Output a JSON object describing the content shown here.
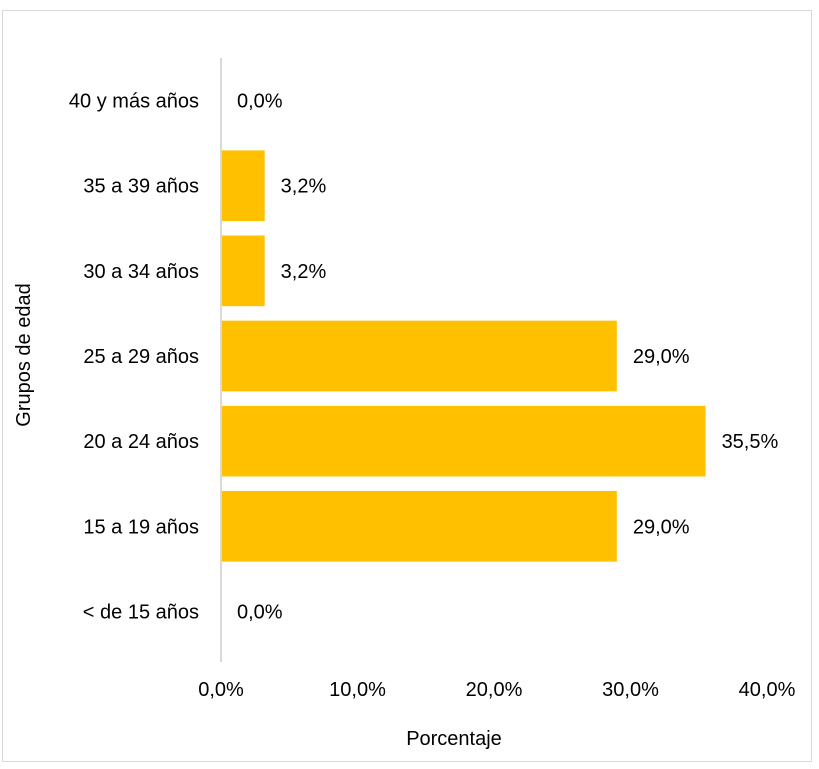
{
  "chart_data": {
    "type": "bar",
    "orientation": "horizontal",
    "categories": [
      "40 y más años",
      "35 a 39 años",
      "30 a 34 años",
      "25 a 29 años",
      "20 a 24 años",
      "15 a 19 años",
      "< de 15 años"
    ],
    "values": [
      0.0,
      3.2,
      3.2,
      29.0,
      35.5,
      29.0,
      0.0
    ],
    "data_labels": [
      "0,0%",
      "3,2%",
      "3,2%",
      "29,0%",
      "35,5%",
      "29,0%",
      "0,0%"
    ],
    "xlabel": "Porcentaje",
    "ylabel": "Grupos de edad",
    "xlim": [
      0,
      40
    ],
    "x_ticks": [
      0,
      10,
      20,
      30,
      40
    ],
    "x_tick_labels": [
      "0,0%",
      "10,0%",
      "20,0%",
      "30,0%",
      "40,0%"
    ],
    "grid": false,
    "legend": "none",
    "bar_color": "#FFC000",
    "axis_color": "#d9d9d9"
  }
}
